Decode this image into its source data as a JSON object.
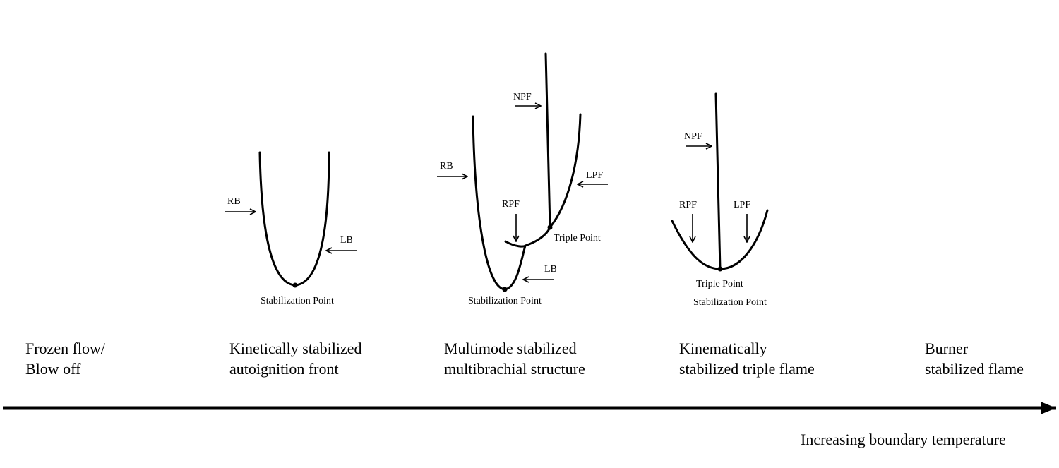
{
  "stages": [
    {
      "line1": "Frozen flow/",
      "line2": "Blow off"
    },
    {
      "line1": "Kinetically stabilized",
      "line2": "autoignition front"
    },
    {
      "line1": "Multimode stabilized",
      "line2": "multibrachial structure"
    },
    {
      "line1": "Kinematically",
      "line2": "stabilized triple flame"
    },
    {
      "line1": "Burner",
      "line2": "stabilized flame"
    }
  ],
  "axis_label": "Increasing boundary temperature",
  "panel1": {
    "rb": "RB",
    "lb": "LB",
    "stabilization": "Stabilization Point"
  },
  "panel2": {
    "npf": "NPF",
    "rb": "RB",
    "lpf": "LPF",
    "rpf": "RPF",
    "triple": "Triple Point",
    "lb": "LB",
    "stabilization": "Stabilization Point"
  },
  "panel3": {
    "npf": "NPF",
    "rpf": "RPF",
    "lpf": "LPF",
    "triple": "Triple Point",
    "stabilization": "Stabilization Point"
  }
}
